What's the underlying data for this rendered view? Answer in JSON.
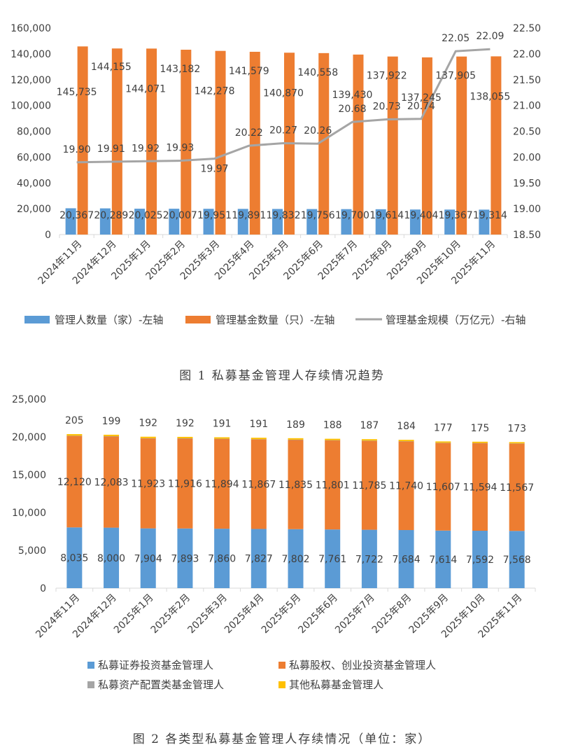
{
  "colors": {
    "blue": "#5b9bd5",
    "orange": "#ed7d31",
    "gray": "#a5a5a5",
    "yellow": "#ffc000",
    "axis": "#d9d9d9",
    "text": "#404040"
  },
  "figure1": {
    "caption": "图 1  私募基金管理人存续情况趋势"
  },
  "figure2": {
    "caption": "图 2  各类型私募基金管理人存续情况（单位：家）"
  },
  "chart_data": [
    {
      "type": "bar",
      "categories": [
        "2024年11月",
        "2024年12月",
        "2025年1月",
        "2025年2月",
        "2025年3月",
        "2025年4月",
        "2025年5月",
        "2025年6月",
        "2025年7月",
        "2025年8月",
        "2025年9月",
        "2025年10月",
        "2025年11月"
      ],
      "series": [
        {
          "name": "管理人数量（家）-左轴",
          "type": "bar",
          "axis": "left",
          "values": [
            20367,
            20289,
            20025,
            20007,
            19951,
            19891,
            19832,
            19756,
            19700,
            19614,
            19404,
            19367,
            19314
          ],
          "labels": [
            "20,367",
            "20,289",
            "20,025",
            "20,007",
            "19,951",
            "19,891",
            "19,832",
            "19,756",
            "19,700",
            "19,614",
            "19,404",
            "19,367",
            "19,314"
          ]
        },
        {
          "name": "管理基金数量（只）-左轴",
          "type": "bar",
          "axis": "left",
          "values": [
            145735,
            144155,
            144071,
            143182,
            142278,
            141579,
            140870,
            140558,
            139430,
            137922,
            137245,
            137905,
            138055
          ],
          "labels": [
            "145,735",
            "144,155",
            "144,071",
            "143,182",
            "142,278",
            "141,579",
            "140,870",
            "140,558",
            "139,430",
            "137,922",
            "137,245",
            "137,905",
            "138,055"
          ]
        },
        {
          "name": "管理基金规模（万亿元）-右轴",
          "type": "line",
          "axis": "right",
          "values": [
            19.9,
            19.91,
            19.92,
            19.93,
            19.97,
            20.22,
            20.27,
            20.26,
            20.68,
            20.73,
            20.74,
            22.05,
            22.09
          ],
          "labels": [
            "19.90",
            "19.91",
            "19.92",
            "19.93",
            "19.97",
            "20.22",
            "20.27",
            "20.26",
            "20.68",
            "20.73",
            "20.74",
            "22.05",
            "22.09"
          ]
        }
      ],
      "y_left": {
        "range": [
          0,
          160000
        ],
        "ticks": [
          "0",
          "20,000",
          "40,000",
          "60,000",
          "80,000",
          "100,000",
          "120,000",
          "140,000",
          "160,000"
        ]
      },
      "y_right": {
        "range": [
          18.5,
          22.5
        ],
        "ticks": [
          "18.50",
          "19.00",
          "19.50",
          "20.00",
          "20.50",
          "21.00",
          "21.50",
          "22.00",
          "22.50"
        ]
      },
      "grid": false,
      "legend": "bottom"
    },
    {
      "type": "bar",
      "stacked": true,
      "categories": [
        "2024年11月",
        "2024年12月",
        "2025年1月",
        "2025年2月",
        "2025年3月",
        "2025年4月",
        "2025年5月",
        "2025年6月",
        "2025年7月",
        "2025年8月",
        "2025年9月",
        "2025年10月",
        "2025年11月"
      ],
      "series": [
        {
          "name": "私募证券投资基金管理人",
          "values": [
            8035,
            8000,
            7904,
            7893,
            7860,
            7827,
            7802,
            7761,
            7722,
            7684,
            7614,
            7592,
            7568
          ],
          "labels": [
            "8,035",
            "8,000",
            "7,904",
            "7,893",
            "7,860",
            "7,827",
            "7,802",
            "7,761",
            "7,722",
            "7,684",
            "7,614",
            "7,592",
            "7,568"
          ]
        },
        {
          "name": "私募股权、创业投资基金管理人",
          "values": [
            12120,
            12083,
            11923,
            11916,
            11894,
            11867,
            11835,
            11801,
            11785,
            11740,
            11607,
            11594,
            11567
          ],
          "labels": [
            "12,120",
            "12,083",
            "11,923",
            "11,916",
            "11,894",
            "11,867",
            "11,835",
            "11,801",
            "11,785",
            "11,740",
            "11,607",
            "11,594",
            "11,567"
          ]
        },
        {
          "name": "私募资产配置类基金管理人",
          "values": [
            7,
            7,
            6,
            6,
            6,
            6,
            6,
            6,
            6,
            6,
            6,
            6,
            6
          ]
        },
        {
          "name": "其他私募基金管理人",
          "values": [
            205,
            199,
            192,
            192,
            191,
            191,
            189,
            188,
            187,
            184,
            177,
            175,
            173
          ],
          "labels": [
            "205",
            "199",
            "192",
            "192",
            "191",
            "191",
            "189",
            "188",
            "187",
            "184",
            "177",
            "175",
            "173"
          ]
        }
      ],
      "y": {
        "range": [
          0,
          25000
        ],
        "ticks": [
          "0",
          "5,000",
          "10,000",
          "15,000",
          "20,000",
          "25,000"
        ]
      },
      "grid": false,
      "legend": "bottom"
    }
  ]
}
